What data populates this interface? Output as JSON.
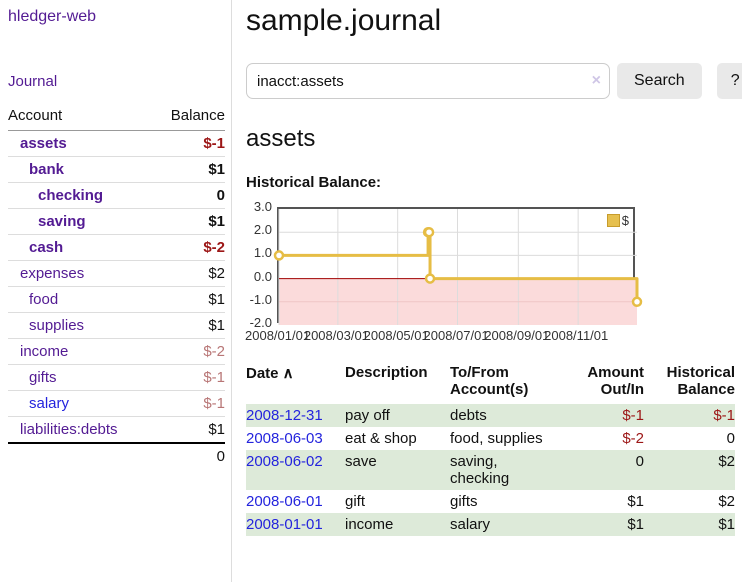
{
  "sidebar": {
    "app_title": "hledger-web",
    "nav": {
      "journal_label": "Journal"
    },
    "accounts_table": {
      "headers": {
        "account": "Account",
        "balance": "Balance"
      },
      "rows": [
        {
          "name": "assets",
          "depth": 1,
          "bold": true,
          "balance": "$-1",
          "balance_tone": "neg-strong",
          "link_tone": "purple"
        },
        {
          "name": "bank",
          "depth": 2,
          "bold": true,
          "balance": "$1",
          "balance_tone": "pos",
          "link_tone": "purple"
        },
        {
          "name": "checking",
          "depth": 3,
          "bold": true,
          "balance": "0",
          "balance_tone": "pos",
          "link_tone": "purple"
        },
        {
          "name": "saving",
          "depth": 3,
          "bold": true,
          "balance": "$1",
          "balance_tone": "pos",
          "link_tone": "purple"
        },
        {
          "name": "cash",
          "depth": 2,
          "bold": true,
          "balance": "$-2",
          "balance_tone": "neg-strong",
          "link_tone": "purple"
        },
        {
          "name": "expenses",
          "depth": 1,
          "bold": false,
          "balance": "$2",
          "balance_tone": "pos",
          "link_tone": "purple"
        },
        {
          "name": "food",
          "depth": 2,
          "bold": false,
          "balance": "$1",
          "balance_tone": "pos",
          "link_tone": "purple"
        },
        {
          "name": "supplies",
          "depth": 2,
          "bold": false,
          "balance": "$1",
          "balance_tone": "pos",
          "link_tone": "purple"
        },
        {
          "name": "income",
          "depth": 1,
          "bold": false,
          "balance": "$-2",
          "balance_tone": "neg-soft",
          "link_tone": "purple"
        },
        {
          "name": "gifts",
          "depth": 2,
          "bold": false,
          "balance": "$-1",
          "balance_tone": "neg-soft",
          "link_tone": "purple"
        },
        {
          "name": "salary",
          "depth": 2,
          "bold": false,
          "balance": "$-1",
          "balance_tone": "neg-soft",
          "link_tone": "blue"
        },
        {
          "name": "liabilities:debts",
          "depth": 1,
          "bold": false,
          "balance": "$1",
          "balance_tone": "pos",
          "link_tone": "purple"
        }
      ],
      "total": "0"
    }
  },
  "main": {
    "title": "sample.journal",
    "search": {
      "value": "inacct:assets",
      "clear_icon": "×",
      "submit_label": "Search",
      "help_label": "?"
    },
    "account_heading": "assets",
    "chart_label": "Historical Balance:",
    "register": {
      "columns": [
        {
          "label": "Date",
          "sort_indicator": "∧"
        },
        {
          "label": "Description"
        },
        {
          "label": "To/From Account(s)"
        },
        {
          "label": "Amount Out/In"
        },
        {
          "label": "Historical Balance"
        }
      ],
      "rows": [
        {
          "date": "2008-12-31",
          "description": "pay off",
          "accounts": "debts",
          "amount": "$-1",
          "amount_tone": "neg",
          "balance": "$-1",
          "balance_tone": "neg"
        },
        {
          "date": "2008-06-03",
          "description": "eat & shop",
          "accounts": "food, supplies",
          "amount": "$-2",
          "amount_tone": "neg",
          "balance": "0",
          "balance_tone": "pos"
        },
        {
          "date": "2008-06-02",
          "description": "save",
          "accounts": "saving, checking",
          "amount": "0",
          "amount_tone": "pos",
          "balance": "$2",
          "balance_tone": "pos"
        },
        {
          "date": "2008-06-01",
          "description": "gift",
          "accounts": "gifts",
          "amount": "$1",
          "amount_tone": "pos",
          "balance": "$2",
          "balance_tone": "pos"
        },
        {
          "date": "2008-01-01",
          "description": "income",
          "accounts": "salary",
          "amount": "$1",
          "amount_tone": "pos",
          "balance": "$1",
          "balance_tone": "pos"
        }
      ]
    }
  },
  "chart_data": {
    "type": "line",
    "step": true,
    "title": "Historical Balance:",
    "series": [
      {
        "name": "$",
        "x": [
          "2008-01-01",
          "2008-06-01",
          "2008-06-02",
          "2008-06-03",
          "2008-12-31"
        ],
        "y": [
          1,
          2,
          2,
          0,
          -1
        ]
      }
    ],
    "xlim": [
      "2008-01-01",
      "2008-12-31"
    ],
    "ylim": [
      -2,
      3
    ],
    "y_ticks": [
      {
        "v": 3,
        "label": "3.0"
      },
      {
        "v": 2,
        "label": "2.0"
      },
      {
        "v": 1,
        "label": "1.0"
      },
      {
        "v": 0,
        "label": "0.0"
      },
      {
        "v": -1,
        "label": "-1.0"
      },
      {
        "v": -2,
        "label": "-2.0"
      }
    ],
    "x_ticks": [
      {
        "date": "2008-01-01",
        "label": "2008/01/01"
      },
      {
        "date": "2008-03-01",
        "label": "2008/03/01"
      },
      {
        "date": "2008-05-01",
        "label": "2008/05/01"
      },
      {
        "date": "2008-07-01",
        "label": "2008/07/01"
      },
      {
        "date": "2008-09-01",
        "label": "2008/09/01"
      },
      {
        "date": "2008-11-01",
        "label": "2008/11/01"
      }
    ],
    "legend": {
      "position": "top-right",
      "label": "$"
    },
    "grid": true,
    "colors": {
      "line": "#e6bd45",
      "marker_fill": "#ffffff",
      "negative_region": "#fbdbdb",
      "zero_line": "#a00000",
      "grid": "#dcdcdc",
      "grid_negative": "#efc6c6",
      "frame": "#545454"
    }
  },
  "colors": {
    "link_purple": "#531b93",
    "link_blue": "#2424dd",
    "neg_strong": "#9c1616",
    "neg_soft": "#b87676",
    "row_green": "#ddead9",
    "button_bg": "#e9e9e9"
  }
}
